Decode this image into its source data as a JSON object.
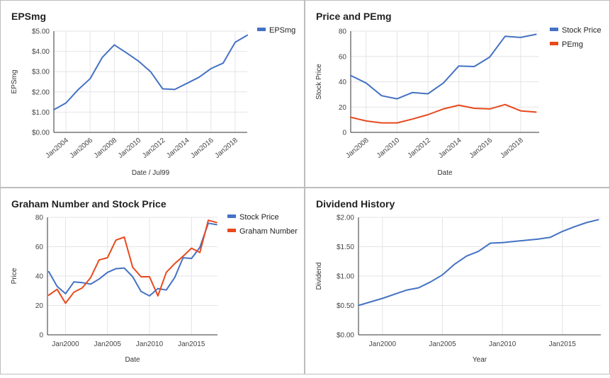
{
  "chart_data": [
    {
      "type": "line",
      "title": "EPSmg",
      "xlabel": "Date / Jul99",
      "ylabel": "EPSmg",
      "x": [
        2003,
        2004,
        2005,
        2006,
        2007,
        2008,
        2009,
        2010,
        2011,
        2012,
        2013,
        2014,
        2015,
        2016,
        2017,
        2018,
        2019
      ],
      "series": [
        {
          "name": "EPSmg",
          "color": "#4472C4",
          "values": [
            1.12,
            1.45,
            2.1,
            2.65,
            3.7,
            4.32,
            3.93,
            3.52,
            3.0,
            2.15,
            2.12,
            2.42,
            2.72,
            3.15,
            3.42,
            4.45,
            4.8
          ]
        }
      ],
      "xticks": [
        {
          "v": 2004,
          "label": "Jan2004"
        },
        {
          "v": 2006,
          "label": "Jan2006"
        },
        {
          "v": 2008,
          "label": "Jan2008"
        },
        {
          "v": 2010,
          "label": "Jan2010"
        },
        {
          "v": 2012,
          "label": "Jan2012"
        },
        {
          "v": 2014,
          "label": "Jan2014"
        },
        {
          "v": 2016,
          "label": "Jan2016"
        },
        {
          "v": 2018,
          "label": "Jan2018"
        }
      ],
      "xlim": [
        2003,
        2019
      ],
      "yticks": [
        {
          "v": 0,
          "label": "$0.00"
        },
        {
          "v": 1,
          "label": "$1.00"
        },
        {
          "v": 2,
          "label": "$2.00"
        },
        {
          "v": 3,
          "label": "$3.00"
        },
        {
          "v": 4,
          "label": "$4.00"
        },
        {
          "v": 5,
          "label": "$5.00"
        }
      ],
      "ylim": [
        0,
        5
      ],
      "rotate_xticks": true,
      "legend_position": "right"
    },
    {
      "type": "line",
      "title": "Price and PEmg",
      "xlabel": "Date",
      "ylabel": "Stock Price",
      "x": [
        2007,
        2008,
        2009,
        2010,
        2011,
        2012,
        2013,
        2014,
        2015,
        2016,
        2017,
        2018,
        2019
      ],
      "series": [
        {
          "name": "Stock Price",
          "color": "#4472C4",
          "values": [
            45,
            39,
            29,
            26.5,
            31.5,
            30.5,
            39,
            52.5,
            52,
            59.5,
            76,
            75,
            77.5
          ]
        },
        {
          "name": "PEmg",
          "color": "#E8491D",
          "values": [
            12,
            9,
            7.5,
            7.5,
            10.5,
            14,
            18.5,
            21.5,
            19,
            18.5,
            22,
            17,
            16
          ]
        }
      ],
      "xticks": [
        {
          "v": 2008,
          "label": "Jan2008"
        },
        {
          "v": 2010,
          "label": "Jan2010"
        },
        {
          "v": 2012,
          "label": "Jan2012"
        },
        {
          "v": 2014,
          "label": "Jan2014"
        },
        {
          "v": 2016,
          "label": "Jan2016"
        },
        {
          "v": 2018,
          "label": "Jan2018"
        }
      ],
      "xlim": [
        2007,
        2019.2
      ],
      "yticks": [
        {
          "v": 0,
          "label": "0"
        },
        {
          "v": 20,
          "label": "20"
        },
        {
          "v": 40,
          "label": "40"
        },
        {
          "v": 60,
          "label": "60"
        },
        {
          "v": 80,
          "label": "80"
        }
      ],
      "ylim": [
        0,
        80
      ],
      "rotate_xticks": true,
      "legend_position": "right"
    },
    {
      "type": "line",
      "title": "Graham Number and Stock Price",
      "xlabel": "Date",
      "ylabel": "Price",
      "x": [
        1998,
        1999,
        2000,
        2001,
        2002,
        2003,
        2004,
        2005,
        2006,
        2007,
        2008,
        2009,
        2010,
        2011,
        2012,
        2013,
        2014,
        2015,
        2016,
        2017,
        2018
      ],
      "series": [
        {
          "name": "Stock Price",
          "color": "#4472C4",
          "values": [
            43,
            33,
            28,
            36,
            35.5,
            34.5,
            38,
            42.5,
            45,
            45.5,
            39.5,
            29.5,
            26.5,
            31.5,
            30.5,
            39,
            52.5,
            52,
            59.5,
            76,
            75
          ]
        },
        {
          "name": "Graham Number",
          "color": "#E8491D",
          "values": [
            27,
            31,
            21.5,
            29,
            32,
            39,
            51,
            52.5,
            64.5,
            66.5,
            46,
            39.5,
            39.5,
            26.5,
            42.5,
            48.5,
            53.5,
            59,
            56,
            78,
            76.5
          ]
        }
      ],
      "xticks": [
        {
          "v": 2000,
          "label": "Jan2000"
        },
        {
          "v": 2005,
          "label": "Jan2005"
        },
        {
          "v": 2010,
          "label": "Jan2010"
        },
        {
          "v": 2015,
          "label": "Jan2015"
        }
      ],
      "xlim": [
        1997.85,
        2018.1
      ],
      "yticks": [
        {
          "v": 0,
          "label": "0"
        },
        {
          "v": 20,
          "label": "20"
        },
        {
          "v": 40,
          "label": "40"
        },
        {
          "v": 60,
          "label": "60"
        },
        {
          "v": 80,
          "label": "80"
        }
      ],
      "ylim": [
        0,
        80
      ],
      "rotate_xticks": false,
      "legend_position": "right"
    },
    {
      "type": "line",
      "title": "Dividend History",
      "xlabel": "Year",
      "ylabel": "Dividend",
      "x": [
        1998,
        1999,
        2000,
        2001,
        2002,
        2003,
        2004,
        2005,
        2006,
        2007,
        2008,
        2009,
        2010,
        2011,
        2012,
        2013,
        2014,
        2015,
        2016,
        2017,
        2018
      ],
      "series": [
        {
          "name": "Dividend",
          "color": "#4472C4",
          "values": [
            0.5,
            0.56,
            0.62,
            0.69,
            0.76,
            0.8,
            0.9,
            1.02,
            1.2,
            1.34,
            1.42,
            1.56,
            1.57,
            1.59,
            1.61,
            1.63,
            1.66,
            1.76,
            1.84,
            1.91,
            1.96
          ]
        }
      ],
      "xticks": [
        {
          "v": 2000,
          "label": "Jan2000"
        },
        {
          "v": 2005,
          "label": "Jan2005"
        },
        {
          "v": 2010,
          "label": "Jan2010"
        },
        {
          "v": 2015,
          "label": "Jan2015"
        }
      ],
      "xlim": [
        1998,
        2018.2
      ],
      "yticks": [
        {
          "v": 0,
          "label": "$0.00"
        },
        {
          "v": 0.5,
          "label": "$0.50"
        },
        {
          "v": 1,
          "label": "$1.00"
        },
        {
          "v": 1.5,
          "label": "$1.50"
        },
        {
          "v": 2,
          "label": "$2.00"
        }
      ],
      "ylim": [
        0,
        2
      ],
      "rotate_xticks": false,
      "show_legend": false
    }
  ]
}
